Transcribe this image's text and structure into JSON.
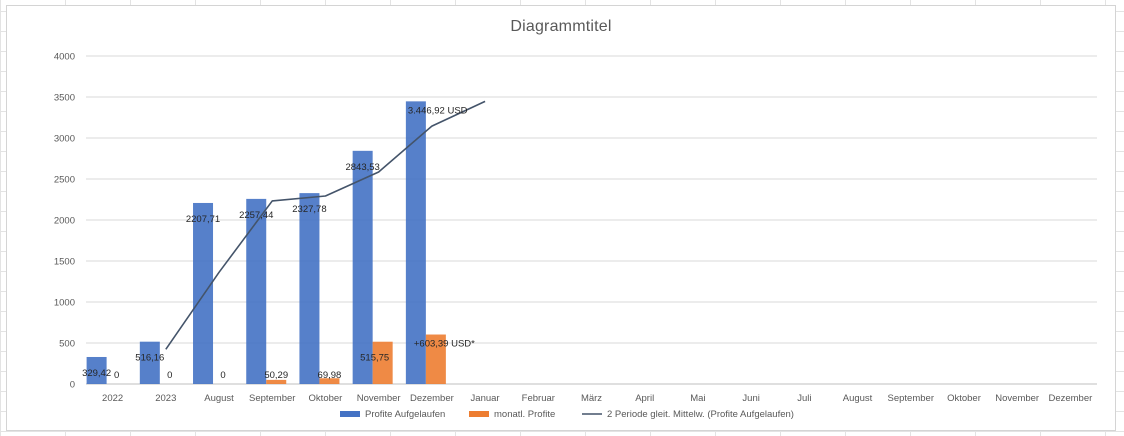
{
  "chart_data": {
    "type": "bar",
    "title": "Diagrammtitel",
    "categories": [
      "2022",
      "2023",
      "August",
      "September",
      "Oktober",
      "November",
      "Dezember",
      "Januar",
      "Februar",
      "März",
      "April",
      "Mai",
      "Juni",
      "Juli",
      "August",
      "September",
      "Oktober",
      "November",
      "Dezember"
    ],
    "ylim": [
      0,
      4000
    ],
    "yticks": [
      0,
      500,
      1000,
      1500,
      2000,
      2500,
      3000,
      3500,
      4000
    ],
    "grid": true,
    "legend_position": "bottom",
    "series": [
      {
        "name": "Profite Aufgelaufen",
        "type": "bar",
        "color": "#4472c4",
        "values": [
          329.42,
          516.16,
          2207.71,
          2257.44,
          2327.78,
          2843.53,
          3446.92,
          null,
          null,
          null,
          null,
          null,
          null,
          null,
          null,
          null,
          null,
          null,
          null
        ],
        "labels": [
          "329,42",
          "516,16",
          "2207,71",
          "2257,44",
          "2327,78",
          "2843,53",
          "3.446,92 USD",
          "",
          "",
          "",
          "",
          "",
          "",
          "",
          "",
          "",
          "",
          "",
          ""
        ]
      },
      {
        "name": "monatl. Profite",
        "type": "bar",
        "color": "#ed7d31",
        "values": [
          0,
          0,
          0,
          50.29,
          69.98,
          515.75,
          603.39,
          null,
          null,
          null,
          null,
          null,
          null,
          null,
          null,
          null,
          null,
          null,
          null
        ],
        "labels": [
          "0",
          "0",
          "0",
          "50,29",
          "69,98",
          "515,75",
          "+603,39 USD*",
          "",
          "",
          "",
          "",
          "",
          "",
          "",
          "",
          "",
          "",
          "",
          ""
        ]
      },
      {
        "name": "2 Periode gleit. Mittelw. (Profite Aufgelaufen)",
        "type": "line",
        "color": "#44546a",
        "values": [
          null,
          422.79,
          1361.94,
          2232.58,
          2292.61,
          2585.66,
          3145.23,
          3446.92,
          null,
          null,
          null,
          null,
          null,
          null,
          null,
          null,
          null,
          null,
          null
        ]
      }
    ]
  }
}
